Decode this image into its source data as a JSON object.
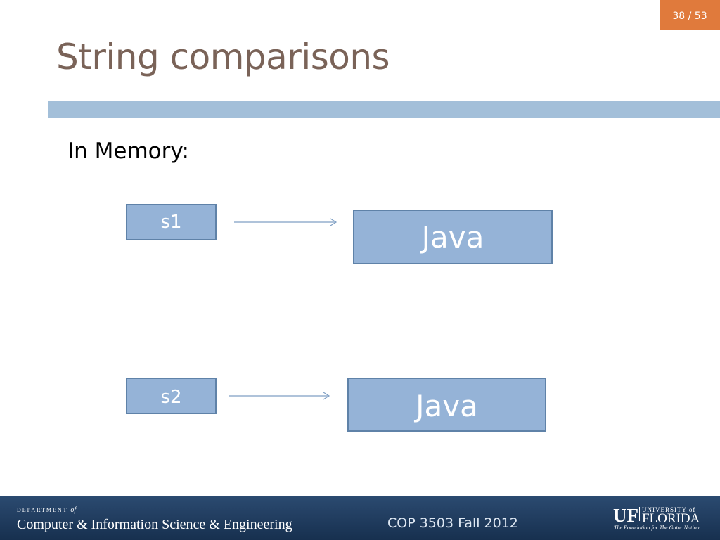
{
  "slide_number": "38 / 53",
  "title": "String comparisons",
  "body": {
    "label": "In Memory:"
  },
  "nodes": [
    {
      "label": "s1"
    },
    {
      "label": "Java"
    },
    {
      "label": "s2"
    },
    {
      "label": "Java"
    }
  ],
  "footer": {
    "department": "DEPARTMENT",
    "of": "of",
    "department_name": "Computer & Information Science & Engineering",
    "course": "COP 3503 Fall 2012",
    "logo_uf": "UF",
    "logo_university": "UNIVERSITY of",
    "logo_florida": "FLORIDA",
    "logo_tagline": "The Foundation for The Gator Nation"
  }
}
